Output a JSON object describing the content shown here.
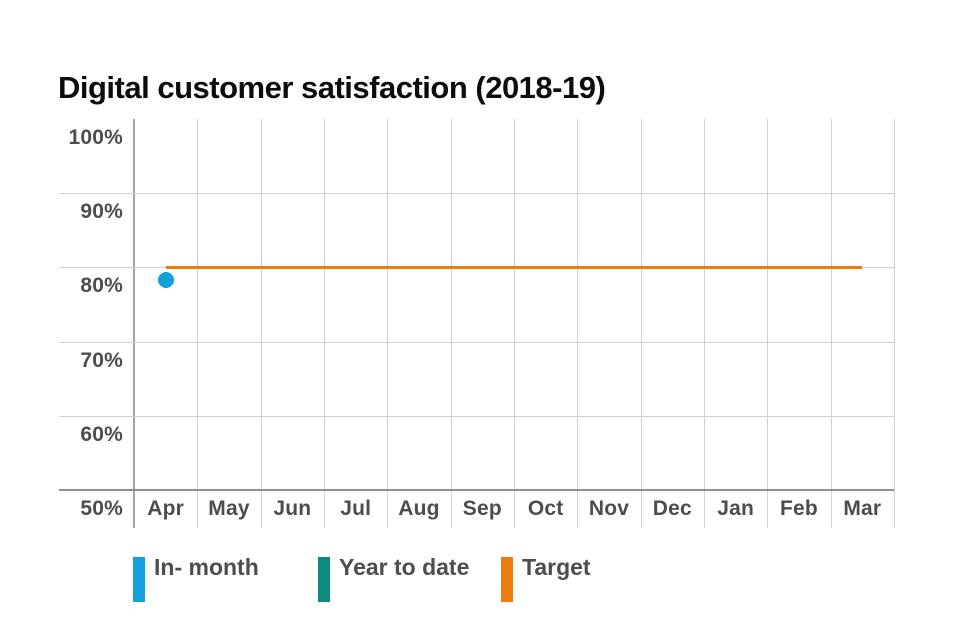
{
  "title": "Digital customer satisfaction (2018-19)",
  "colors": {
    "in_month": "#14a0d8",
    "year_to_date": "#0e8a80",
    "target": "#ee7b0e",
    "grid": "#d0d0d0",
    "axis": "#8f8f8f",
    "label_text": "#4d4d4d",
    "title_text": "#0b0c0c"
  },
  "chart_data": {
    "type": "scatter",
    "title": "Digital customer satisfaction (2018-19)",
    "x_categories": [
      "Apr",
      "May",
      "Jun",
      "Jul",
      "Aug",
      "Sep",
      "Oct",
      "Nov",
      "Dec",
      "Jan",
      "Feb",
      "Mar"
    ],
    "y_axis": {
      "min": 50,
      "max": 100,
      "step": 10,
      "ticks": [
        {
          "value": 100,
          "label": "100%"
        },
        {
          "value": 90,
          "label": "90%"
        },
        {
          "value": 80,
          "label": "80%"
        },
        {
          "value": 70,
          "label": "70%"
        },
        {
          "value": 60,
          "label": "60%"
        },
        {
          "value": 50,
          "label": "50%"
        }
      ]
    },
    "grid": true,
    "legend_position": "bottom",
    "series": [
      {
        "name": "In- month",
        "type": "point",
        "color": "#14a0d8",
        "points": [
          {
            "x": "Apr",
            "y": 78.3
          }
        ]
      },
      {
        "name": "Year to date",
        "type": "point",
        "color": "#0e8a80",
        "points": []
      },
      {
        "name": "Target",
        "type": "line",
        "color": "#ee7b0e",
        "value": 80,
        "x_start": "Apr",
        "x_end": "Mar"
      }
    ]
  },
  "legend": {
    "items": [
      {
        "label": "In- month",
        "color": "#14a0d8"
      },
      {
        "label": "Year to date",
        "color": "#0e8a80"
      },
      {
        "label": "Target",
        "color": "#ee7b0e"
      }
    ]
  }
}
